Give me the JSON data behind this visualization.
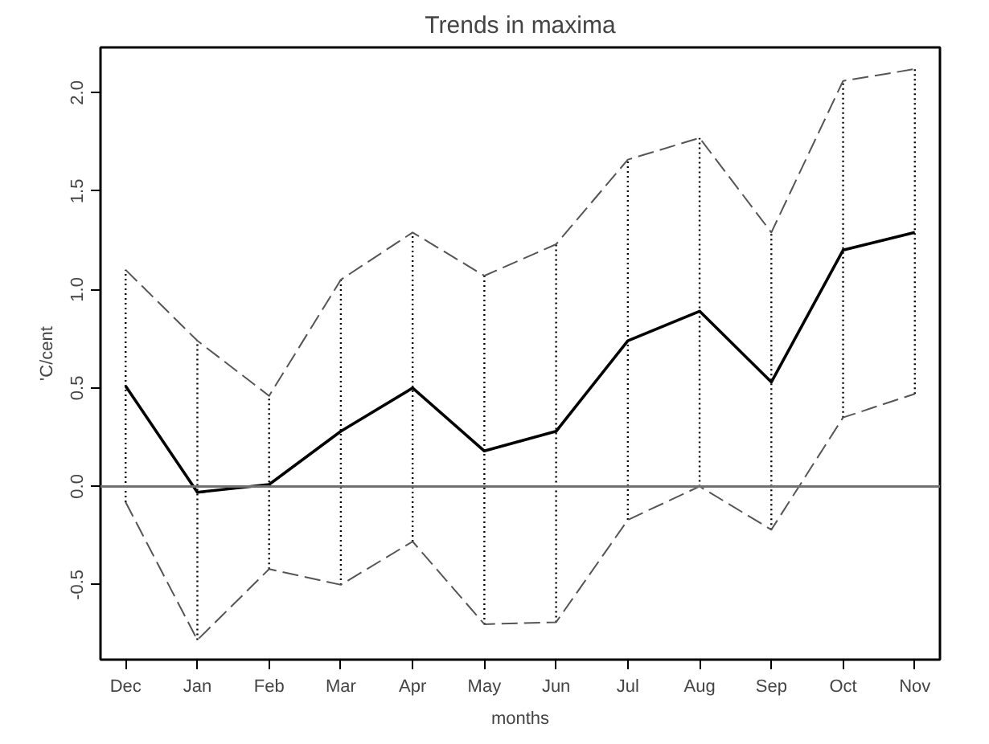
{
  "chart_data": {
    "type": "line",
    "title": "Trends in maxima",
    "xlabel": "months",
    "ylabel": "'C/cent",
    "categories": [
      "Dec",
      "Jan",
      "Feb",
      "Mar",
      "Apr",
      "May",
      "Jun",
      "Jul",
      "Aug",
      "Sep",
      "Oct",
      "Nov"
    ],
    "series": [
      {
        "color": "#000000",
        "values": [
          0.51,
          -0.03,
          0.01,
          0.28,
          0.5,
          0.18,
          0.28,
          0.74,
          0.89,
          0.53,
          1.2,
          1.29
        ],
        "errors": [
          [
            -0.08,
            1.1
          ],
          [
            -0.78,
            0.74
          ],
          [
            -0.42,
            0.46
          ],
          [
            -0.5,
            1.05
          ],
          [
            -0.28,
            1.29
          ],
          [
            -0.7,
            1.07
          ],
          [
            -0.69,
            1.23
          ],
          [
            -0.17,
            1.66
          ],
          [
            0.0,
            1.77
          ],
          [
            -0.22,
            1.29
          ],
          [
            0.35,
            2.06
          ],
          [
            0.47,
            2.12
          ]
        ]
      },
      {
        "color": "#555555",
        "line_style": "dashed",
        "values": [
          1.1,
          0.74,
          0.46,
          1.05,
          1.29,
          1.07,
          1.23,
          1.66,
          1.77,
          1.29,
          2.06,
          2.12
        ]
      },
      {
        "color": "#555555",
        "line_style": "dashed",
        "values": [
          -0.08,
          -0.78,
          -0.42,
          -0.5,
          -0.28,
          -0.7,
          -0.69,
          -0.17,
          0.0,
          -0.22,
          0.35,
          0.47
        ]
      }
    ],
    "ylim": [
      -0.88,
      2.23
    ],
    "yticks": [
      {
        "value": -0.5,
        "label": "-0.5"
      },
      {
        "value": 0,
        "label": "0.0"
      },
      {
        "value": 0.5,
        "label": "0.5"
      },
      {
        "value": 1,
        "label": "1.0"
      },
      {
        "value": 1.5,
        "label": "1.5"
      },
      {
        "value": 2,
        "label": "2.0"
      }
    ],
    "ref_lines": [
      {
        "axis": "y",
        "value": 0,
        "color": "#707070",
        "line_style": "solid"
      }
    ],
    "line_style": "solid"
  }
}
